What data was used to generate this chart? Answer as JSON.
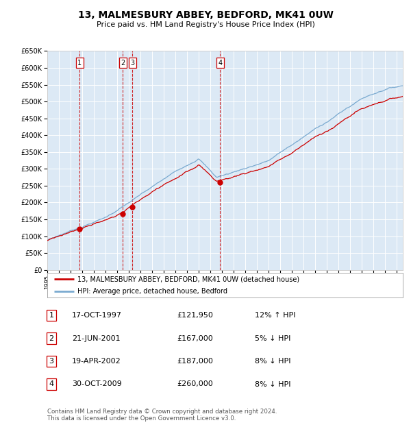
{
  "title": "13, MALMESBURY ABBEY, BEDFORD, MK41 0UW",
  "subtitle": "Price paid vs. HM Land Registry's House Price Index (HPI)",
  "background_color": "#dce9f5",
  "fig_bg_color": "#ffffff",
  "ylim": [
    0,
    650000
  ],
  "yticks": [
    0,
    50000,
    100000,
    150000,
    200000,
    250000,
    300000,
    350000,
    400000,
    450000,
    500000,
    550000,
    600000,
    650000
  ],
  "xlim_start": 1995.0,
  "xlim_end": 2025.5,
  "sale_dates": [
    1997.79,
    2001.47,
    2002.3,
    2009.83
  ],
  "sale_prices": [
    121950,
    167000,
    187000,
    260000
  ],
  "sale_labels": [
    "1",
    "2",
    "3",
    "4"
  ],
  "vline_color": "#cc0000",
  "marker_color": "#cc0000",
  "hpi_line_color": "#7aaad0",
  "price_line_color": "#cc0000",
  "legend_label_price": "13, MALMESBURY ABBEY, BEDFORD, MK41 0UW (detached house)",
  "legend_label_hpi": "HPI: Average price, detached house, Bedford",
  "table_entries": [
    {
      "num": "1",
      "date": "17-OCT-1997",
      "price": "£121,950",
      "hpi": "12% ↑ HPI"
    },
    {
      "num": "2",
      "date": "21-JUN-2001",
      "price": "£167,000",
      "hpi": "5% ↓ HPI"
    },
    {
      "num": "3",
      "date": "19-APR-2002",
      "price": "£187,000",
      "hpi": "8% ↓ HPI"
    },
    {
      "num": "4",
      "date": "30-OCT-2009",
      "price": "£260,000",
      "hpi": "8% ↓ HPI"
    }
  ],
  "footer": "Contains HM Land Registry data © Crown copyright and database right 2024.\nThis data is licensed under the Open Government Licence v3.0."
}
